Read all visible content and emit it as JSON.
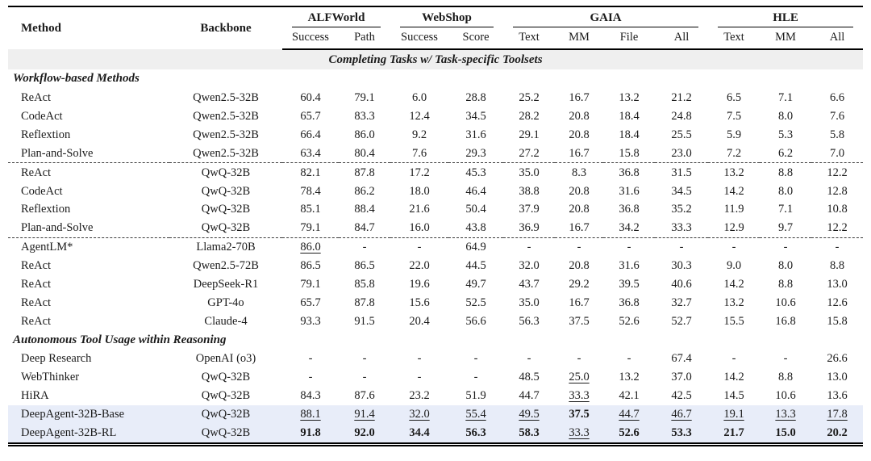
{
  "table": {
    "colors": {
      "banner_bg": "#efefef",
      "highlight_bg": "#e8edf9",
      "ink": "#1b1b1b"
    },
    "columns": {
      "method": "Method",
      "backbone": "Backbone",
      "groups": [
        {
          "label": "ALFWorld",
          "subs": [
            "Success",
            "Path"
          ]
        },
        {
          "label": "WebShop",
          "subs": [
            "Success",
            "Score"
          ]
        },
        {
          "label": "GAIA",
          "subs": [
            "Text",
            "MM",
            "File",
            "All"
          ]
        },
        {
          "label": "HLE",
          "subs": [
            "Text",
            "MM",
            "All"
          ]
        }
      ]
    },
    "rows": [
      {
        "type": "banner",
        "label": "Completing Tasks w/ Task-specific Toolsets"
      },
      {
        "type": "group",
        "label": "Workflow-based Methods"
      },
      {
        "type": "data",
        "method": "ReAct",
        "backbone": "Qwen2.5-32B",
        "values": [
          "60.4",
          "79.1",
          "6.0",
          "28.8",
          "25.2",
          "16.7",
          "13.2",
          "21.2",
          "6.5",
          "7.1",
          "6.6"
        ]
      },
      {
        "type": "data",
        "method": "CodeAct",
        "backbone": "Qwen2.5-32B",
        "values": [
          "65.7",
          "83.3",
          "12.4",
          "34.5",
          "28.2",
          "20.8",
          "18.4",
          "24.8",
          "7.5",
          "8.0",
          "7.6"
        ]
      },
      {
        "type": "data",
        "method": "Reflextion",
        "backbone": "Qwen2.5-32B",
        "values": [
          "66.4",
          "86.0",
          "9.2",
          "31.6",
          "29.1",
          "20.8",
          "18.4",
          "25.5",
          "5.9",
          "5.3",
          "5.8"
        ]
      },
      {
        "type": "data",
        "method": "Plan-and-Solve",
        "backbone": "Qwen2.5-32B",
        "values": [
          "63.4",
          "80.4",
          "7.6",
          "29.3",
          "27.2",
          "16.7",
          "15.8",
          "23.0",
          "7.2",
          "6.2",
          "7.0"
        ]
      },
      {
        "type": "data",
        "dashed_above": true,
        "method": "ReAct",
        "backbone": "QwQ-32B",
        "values": [
          "82.1",
          "87.8",
          "17.2",
          "45.3",
          "35.0",
          "8.3",
          "36.8",
          "31.5",
          "13.2",
          "8.8",
          "12.2"
        ]
      },
      {
        "type": "data",
        "method": "CodeAct",
        "backbone": "QwQ-32B",
        "values": [
          "78.4",
          "86.2",
          "18.0",
          "46.4",
          "38.8",
          "20.8",
          "31.6",
          "34.5",
          "14.2",
          "8.0",
          "12.8"
        ]
      },
      {
        "type": "data",
        "method": "Reflextion",
        "backbone": "QwQ-32B",
        "values": [
          "85.1",
          "88.4",
          "21.6",
          "50.4",
          "37.9",
          "20.8",
          "36.8",
          "35.2",
          "11.9",
          "7.1",
          "10.8"
        ]
      },
      {
        "type": "data",
        "method": "Plan-and-Solve",
        "backbone": "QwQ-32B",
        "values": [
          "79.1",
          "84.7",
          "16.0",
          "43.8",
          "36.9",
          "16.7",
          "34.2",
          "33.3",
          "12.9",
          "9.7",
          "12.2"
        ]
      },
      {
        "type": "data",
        "dashed_above": true,
        "method": "AgentLM*",
        "backbone": "Llama2-70B",
        "values": [
          "86.0",
          "-",
          "-",
          "64.9",
          "-",
          "-",
          "-",
          "-",
          "-",
          "-",
          "-"
        ],
        "marks": [
          "u",
          "",
          "",
          "",
          "",
          "",
          "",
          "",
          "",
          "",
          ""
        ]
      },
      {
        "type": "data",
        "method": "ReAct",
        "backbone": "Qwen2.5-72B",
        "values": [
          "86.5",
          "86.5",
          "22.0",
          "44.5",
          "32.0",
          "20.8",
          "31.6",
          "30.3",
          "9.0",
          "8.0",
          "8.8"
        ]
      },
      {
        "type": "data",
        "method": "ReAct",
        "backbone": "DeepSeek-R1",
        "values": [
          "79.1",
          "85.8",
          "19.6",
          "49.7",
          "43.7",
          "29.2",
          "39.5",
          "40.6",
          "14.2",
          "8.8",
          "13.0"
        ]
      },
      {
        "type": "data",
        "method": "ReAct",
        "backbone": "GPT-4o",
        "values": [
          "65.7",
          "87.8",
          "15.6",
          "52.5",
          "35.0",
          "16.7",
          "36.8",
          "32.7",
          "13.2",
          "10.6",
          "12.6"
        ]
      },
      {
        "type": "data",
        "method": "ReAct",
        "backbone": "Claude-4",
        "values": [
          "93.3",
          "91.5",
          "20.4",
          "56.6",
          "56.3",
          "37.5",
          "52.6",
          "52.7",
          "15.5",
          "16.8",
          "15.8"
        ]
      },
      {
        "type": "group",
        "label": "Autonomous Tool Usage within Reasoning"
      },
      {
        "type": "data",
        "method": "Deep Research",
        "backbone": "OpenAI (o3)",
        "values": [
          "-",
          "-",
          "-",
          "-",
          "-",
          "-",
          "-",
          "67.4",
          "-",
          "-",
          "26.6"
        ]
      },
      {
        "type": "data",
        "method": "WebThinker",
        "backbone": "QwQ-32B",
        "values": [
          "-",
          "-",
          "-",
          "-",
          "48.5",
          "25.0",
          "13.2",
          "37.0",
          "14.2",
          "8.8",
          "13.0"
        ],
        "marks": [
          "",
          "",
          "",
          "",
          "",
          "u",
          "",
          "",
          "",
          "",
          ""
        ]
      },
      {
        "type": "data",
        "method": "HiRA",
        "backbone": "QwQ-32B",
        "values": [
          "84.3",
          "87.6",
          "23.2",
          "51.9",
          "44.7",
          "33.3",
          "42.1",
          "42.5",
          "14.5",
          "10.6",
          "13.6"
        ],
        "marks": [
          "",
          "",
          "",
          "",
          "",
          "u",
          "",
          "",
          "",
          "",
          ""
        ]
      },
      {
        "type": "data",
        "highlight": true,
        "method": "DeepAgent-32B-Base",
        "backbone": "QwQ-32B",
        "values": [
          "88.1",
          "91.4",
          "32.0",
          "55.4",
          "49.5",
          "37.5",
          "44.7",
          "46.7",
          "19.1",
          "13.3",
          "17.8"
        ],
        "marks": [
          "u",
          "u",
          "u",
          "u",
          "u",
          "b",
          "u",
          "u",
          "u",
          "u",
          "u"
        ]
      },
      {
        "type": "data",
        "highlight": true,
        "method": "DeepAgent-32B-RL",
        "backbone": "QwQ-32B",
        "values": [
          "91.8",
          "92.0",
          "34.4",
          "56.3",
          "58.3",
          "33.3",
          "52.6",
          "53.3",
          "21.7",
          "15.0",
          "20.2"
        ],
        "marks": [
          "b",
          "b",
          "b",
          "b",
          "b",
          "u",
          "b",
          "b",
          "b",
          "b",
          "b"
        ]
      }
    ]
  }
}
